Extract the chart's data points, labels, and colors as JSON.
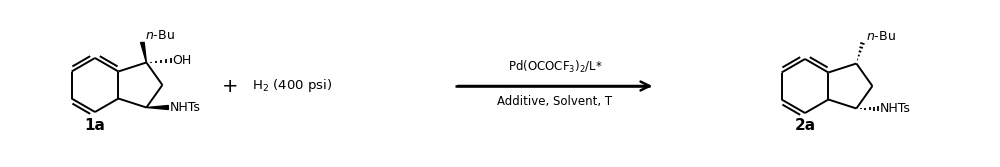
{
  "fig_width": 10.0,
  "fig_height": 1.67,
  "dpi": 100,
  "bg_color": "#ffffff",
  "line_color": "#000000",
  "label_1a": "1a",
  "label_2a": "2a",
  "reagent_top": "Pd(OCOCF$_3$)$_2$/L*",
  "reagent_bottom": "Additive, Solvent, T",
  "plus_h2": "H$_2$ (400 psi)",
  "nbu_label": "$\\it{n}$-Bu",
  "oh_label": "OH",
  "nhts_label": "NHTs"
}
